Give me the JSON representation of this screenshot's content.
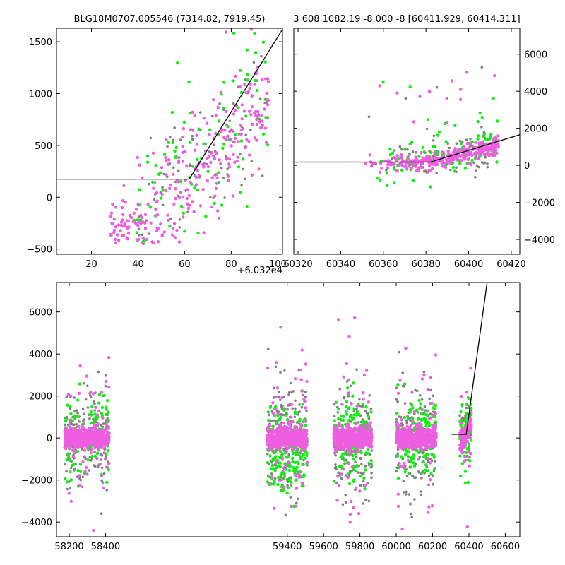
{
  "colors": {
    "pink": "#ee5ee0",
    "green": "#11ee11",
    "grey": "#808080",
    "model_line": "#000000",
    "frame": "#000000",
    "background": "#ffffff"
  },
  "chart_data": [
    {
      "id": "zoom-left",
      "type": "scatter",
      "title": "BLG18M0707.005546 (7314.82, 7919.45)",
      "xlim": [
        5,
        102
      ],
      "ylim": [
        -550,
        1630
      ],
      "x_ticks": [
        20,
        40,
        60,
        80,
        100
      ],
      "x_tick_labels": [
        "20",
        "40",
        "60",
        "80",
        "100"
      ],
      "y_ticks": [
        -500,
        0,
        500,
        1000,
        1500
      ],
      "y_tick_labels": [
        "−500",
        "0",
        "500",
        "1000",
        "1500"
      ],
      "y_axis_side": "left",
      "x_offset_label": "+6.032e4",
      "model_line": {
        "x": [
          5,
          62,
          102
        ],
        "y": [
          175,
          175,
          1620
        ]
      },
      "clusters": [
        {
          "color": "pink",
          "x_range": [
            28,
            96
          ],
          "n": 280,
          "slope": 23.5,
          "intercept": -1300,
          "y_min": 0,
          "y_scatter": 280,
          "floor": -450
        },
        {
          "color": "green",
          "x_range": [
            38,
            96
          ],
          "n": 95,
          "slope": 20,
          "intercept": -900,
          "y_min": 0,
          "y_scatter": 400,
          "floor": -450
        },
        {
          "color": "grey",
          "x_range": [
            40,
            96
          ],
          "n": 95,
          "slope": 18,
          "intercept": -800,
          "y_min": 0,
          "y_scatter": 380,
          "floor": -500
        }
      ]
    },
    {
      "id": "zoom-right",
      "type": "scatter",
      "title": "3 608 1082.19 -8.000 -8 [60411.929, 60414.311]",
      "xlim": [
        60318,
        60424
      ],
      "ylim": [
        -4800,
        7400
      ],
      "x_ticks": [
        60320,
        60340,
        60360,
        60380,
        60400,
        60420
      ],
      "x_tick_labels": [
        "60320",
        "60340",
        "60360",
        "60380",
        "60400",
        "60420"
      ],
      "y_ticks": [
        -4000,
        -2000,
        0,
        2000,
        4000,
        6000
      ],
      "y_tick_labels": [
        "−4000",
        "−2000",
        "0",
        "2000",
        "4000",
        "6000"
      ],
      "y_axis_side": "right",
      "model_line": {
        "x": [
          60318,
          60382,
          60424
        ],
        "y": [
          175,
          175,
          1650
        ]
      },
      "clusters": [
        {
          "color": "pink",
          "x_range": [
            60346,
            60414
          ],
          "n": 320,
          "flat_until": 60382,
          "base": 150,
          "slope": 28,
          "y_scatter": 230
        },
        {
          "color": "green",
          "x_range": [
            60352,
            60414
          ],
          "n": 110,
          "flat_until": 60382,
          "base": 200,
          "slope": 30,
          "y_scatter": 650
        },
        {
          "color": "grey",
          "x_range": [
            60352,
            60414
          ],
          "n": 100,
          "flat_until": 60382,
          "base": 150,
          "slope": 25,
          "y_scatter": 550
        }
      ]
    },
    {
      "id": "full-lightcurve",
      "type": "scatter",
      "title": "",
      "xlim": [
        58130,
        60680
      ],
      "ylim": [
        -4700,
        7400
      ],
      "x_ticks": [
        58200,
        58400,
        59400,
        59600,
        59800,
        60000,
        60200,
        60400,
        60600
      ],
      "x_tick_labels": [
        "58200",
        "58400",
        "59400",
        "59600",
        "59800",
        "60000",
        "60200",
        "60400",
        "60600"
      ],
      "y_ticks": [
        -4000,
        -2000,
        0,
        2000,
        4000,
        6000
      ],
      "y_tick_labels": [
        "−4000",
        "−2000",
        "0",
        "2000",
        "4000",
        "6000"
      ],
      "y_axis_side": "left",
      "model_line": {
        "x": [
          60305,
          60385,
          60500
        ],
        "y": [
          175,
          175,
          7400
        ]
      },
      "seasons": [
        {
          "x_range": [
            58175,
            58420
          ],
          "pink": 650,
          "green": 130,
          "grey": 170,
          "pink_sd": 230,
          "green_sd": 900,
          "grey_sd": 1200
        },
        {
          "x_range": [
            59290,
            59510
          ],
          "pink": 650,
          "green": 200,
          "grey": 180,
          "pink_sd": 230,
          "green_sd": 1000,
          "grey_sd": 1300,
          "green_mean": -600
        },
        {
          "x_range": [
            59655,
            59865
          ],
          "pink": 650,
          "green": 150,
          "grey": 170,
          "pink_sd": 250,
          "green_sd": 950,
          "grey_sd": 1200
        },
        {
          "x_range": [
            60000,
            60220
          ],
          "pink": 650,
          "green": 150,
          "grey": 170,
          "pink_sd": 230,
          "green_sd": 1000,
          "grey_sd": 1200
        },
        {
          "x_range": [
            60350,
            60414
          ],
          "pink": 120,
          "green": 60,
          "grey": 50,
          "pink_sd": 250,
          "green_sd": 900,
          "grey_sd": 900,
          "rising": true
        }
      ]
    }
  ]
}
